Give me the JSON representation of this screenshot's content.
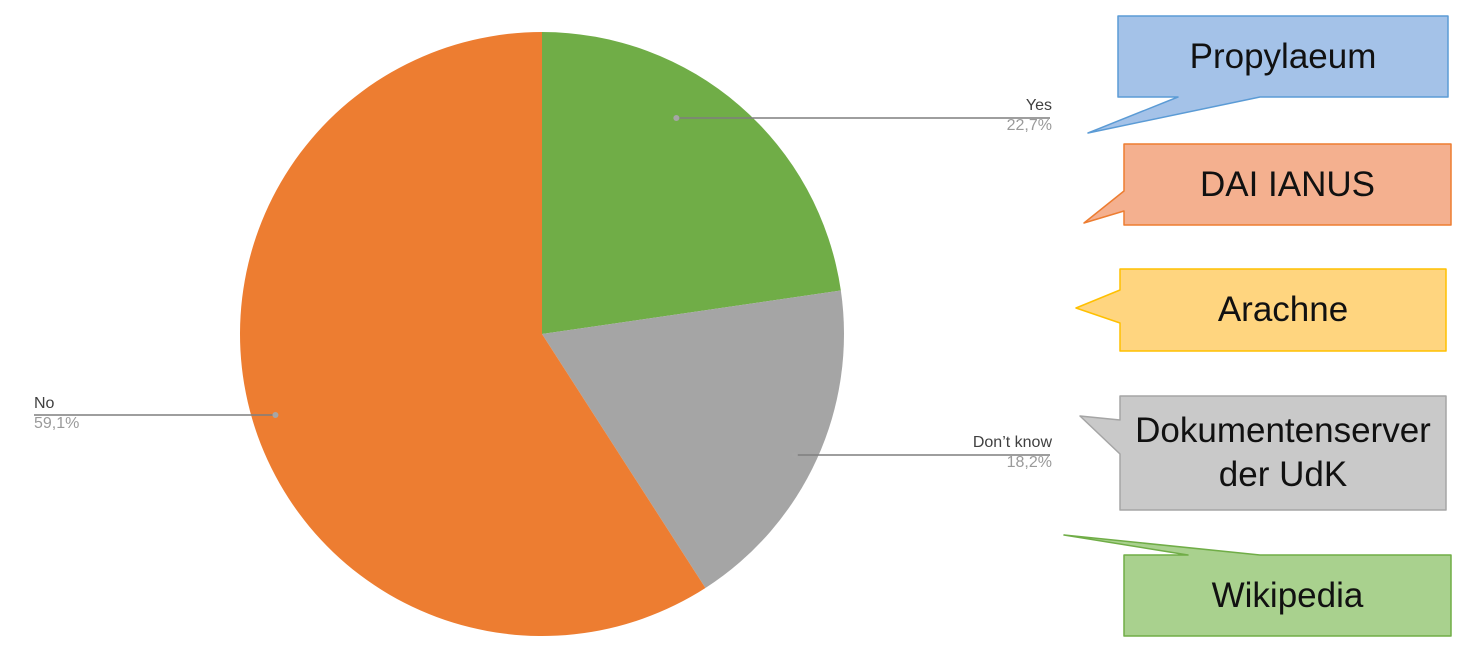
{
  "chart_data": {
    "type": "pie",
    "title": "",
    "slices": [
      {
        "label": "Yes",
        "value": 22.7,
        "display": "22,7%",
        "color": "#70ad47"
      },
      {
        "label": "Don’t know",
        "value": 18.2,
        "display": "18,2%",
        "color": "#a5a5a5"
      },
      {
        "label": "No",
        "value": 59.1,
        "display": "59,1%",
        "color": "#ed7d31"
      }
    ],
    "start": "top",
    "direction": "clockwise",
    "data_labels": "outside with leader lines"
  },
  "callouts": [
    {
      "text": "Propylaeum",
      "fill": "#a4c2e8",
      "stroke": "#5b9bd5"
    },
    {
      "text": "DAI IANUS",
      "fill": "#f4b08f",
      "stroke": "#ed7d31"
    },
    {
      "text": "Arachne",
      "fill": "#ffd57f",
      "stroke": "#ffc000"
    },
    {
      "text": "Dokumentenserver der UdK",
      "fill": "#c9c9c9",
      "stroke": "#a5a5a5"
    },
    {
      "text": "Wikipedia",
      "fill": "#a9d18e",
      "stroke": "#70ad47"
    }
  ]
}
